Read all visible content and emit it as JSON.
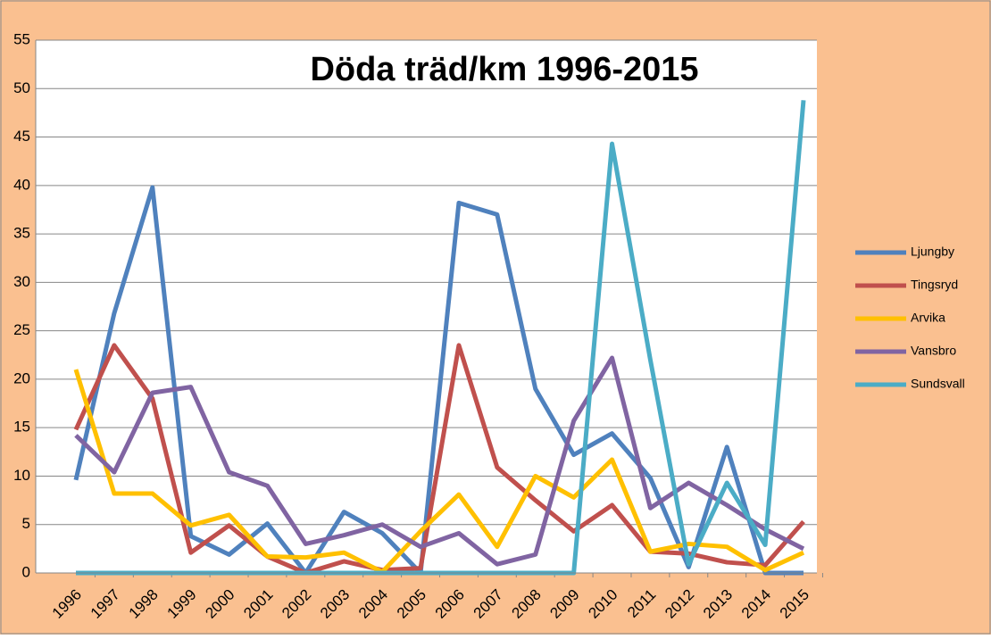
{
  "chart_data": {
    "type": "line",
    "title": "Döda träd/km 1996-2015",
    "categories": [
      "1996",
      "1997",
      "1998",
      "1999",
      "2000",
      "2001",
      "2002",
      "2003",
      "2004",
      "2005",
      "2006",
      "2007",
      "2008",
      "2009",
      "2010",
      "2011",
      "2012",
      "2013",
      "2014",
      "2015"
    ],
    "series": [
      {
        "name": "Ljungby",
        "color": "#4f81bd",
        "values": [
          9.6,
          26.8,
          39.8,
          3.8,
          1.9,
          5.1,
          0,
          6.3,
          4.1,
          0,
          38.2,
          37,
          19,
          12.2,
          14.4,
          9.8,
          0.6,
          13,
          0,
          0
        ]
      },
      {
        "name": "Tingsryd",
        "color": "#c0504d",
        "values": [
          14.8,
          23.5,
          18,
          2.1,
          4.9,
          1.7,
          0,
          1.2,
          0.3,
          0.5,
          23.5,
          10.9,
          7.5,
          4.3,
          7,
          2.2,
          2,
          1.1,
          0.8,
          5.3
        ]
      },
      {
        "name": "Arvika",
        "color": "#ffc000",
        "values": [
          21,
          8.2,
          8.2,
          4.9,
          6,
          1.7,
          1.6,
          2.1,
          0.1,
          4.3,
          8.1,
          2.7,
          10,
          7.8,
          11.7,
          2.2,
          3,
          2.7,
          0.3,
          2.1
        ]
      },
      {
        "name": "Vansbro",
        "color": "#8064a2",
        "values": [
          14.2,
          10.4,
          18.6,
          19.2,
          10.4,
          9,
          3,
          3.9,
          5,
          2.7,
          4.1,
          0.9,
          1.9,
          15.7,
          22.2,
          6.7,
          9.3,
          7,
          4.5,
          2.5
        ]
      },
      {
        "name": "Sundsvall",
        "color": "#4bacc6",
        "values": [
          0,
          0,
          0,
          0,
          0,
          0,
          0,
          0,
          0,
          0,
          0,
          0,
          0,
          0,
          44.3,
          22,
          0.9,
          9.3,
          2.9,
          48.8
        ]
      }
    ],
    "ylim": [
      0,
      55
    ],
    "yticks": [
      0,
      5,
      10,
      15,
      20,
      25,
      30,
      35,
      40,
      45,
      50,
      55
    ],
    "grid": true,
    "legend": "right"
  }
}
